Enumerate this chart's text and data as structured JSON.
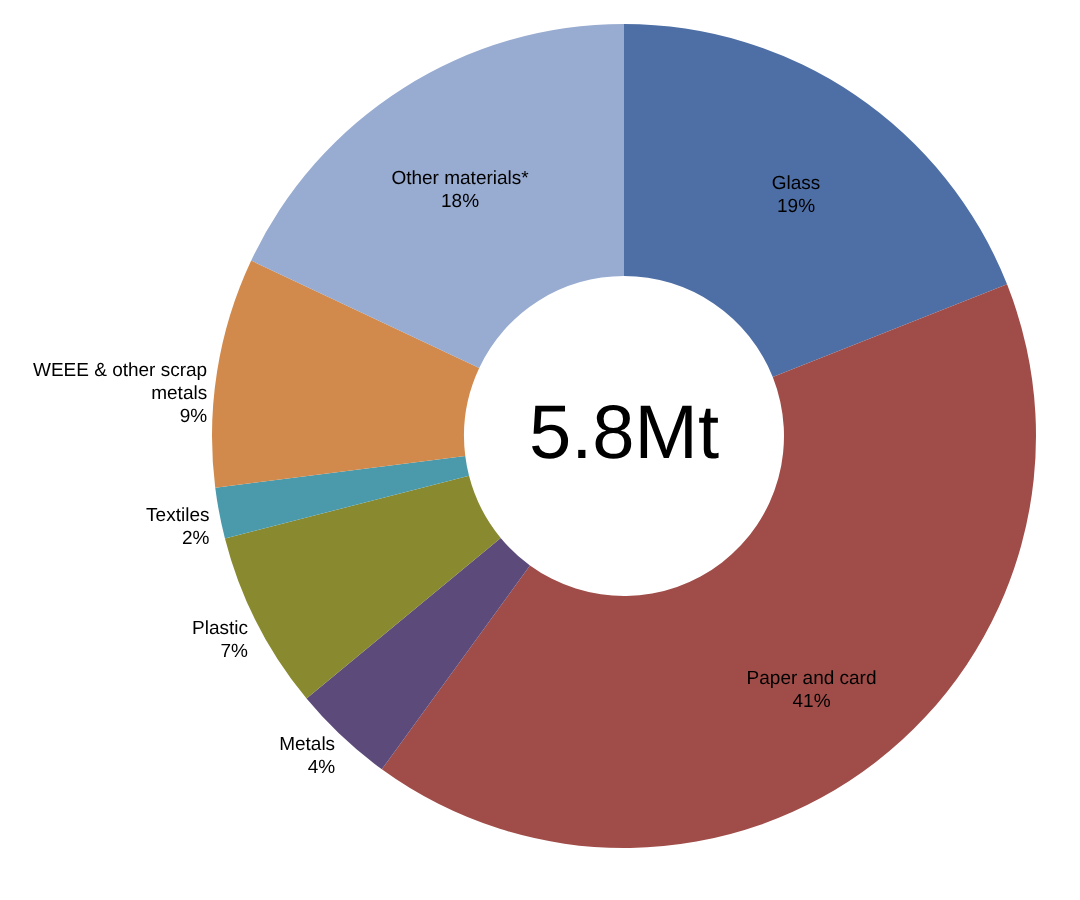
{
  "chart_data": {
    "type": "donut",
    "categories": [
      "Glass",
      "Paper and card",
      "Metals",
      "Plastic",
      "Textiles",
      "WEEE & other scrap metals",
      "Other materials*"
    ],
    "values": [
      19,
      41,
      4,
      7,
      2,
      9,
      18
    ],
    "value_labels": [
      "19%",
      "41%",
      "4%",
      "7%",
      "2%",
      "9%",
      "18%"
    ],
    "colors": [
      "#4e6fa6",
      "#a04c48",
      "#5c4a7b",
      "#898a2f",
      "#4b9aac",
      "#d18a4c",
      "#98abd0"
    ],
    "annotations": [
      "5.8Mt"
    ]
  }
}
